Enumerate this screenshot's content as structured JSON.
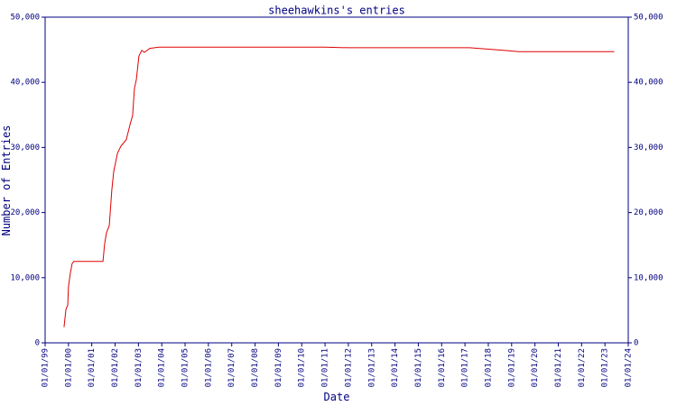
{
  "chart_data": {
    "type": "line",
    "title": "sheehawkins's entries",
    "x_label": "Date",
    "y_label": "Number of Entries",
    "x": [
      1999.81,
      1999.89,
      1999.97,
      2000.0,
      2000.08,
      2000.16,
      2000.23,
      2001.48,
      2001.55,
      2001.63,
      2001.75,
      2001.86,
      2001.94,
      2002.1,
      2002.25,
      2002.48,
      2002.64,
      2002.75,
      2002.83,
      2002.91,
      2003.02,
      2003.14,
      2003.26,
      2003.49,
      2003.88,
      2011.0,
      2012.0,
      2017.2,
      2018.7,
      2019.3,
      2023.4
    ],
    "series": [
      {
        "color": "#e00000",
        "values": [
          2400,
          5100,
          5800,
          8600,
          10700,
          12200,
          12500,
          12500,
          15200,
          16900,
          18000,
          23500,
          26300,
          29100,
          30200,
          31200,
          33500,
          34900,
          39100,
          40400,
          44000,
          44900,
          44600,
          45200,
          45400,
          45400,
          45300,
          45300,
          44900,
          44700,
          44700
        ]
      }
    ],
    "xlim": [
      1999,
      2024
    ],
    "xticks": [
      {
        "value": 1999,
        "label": "01/01/99"
      },
      {
        "value": 2000,
        "label": "01/01/00"
      },
      {
        "value": 2001,
        "label": "01/01/01"
      },
      {
        "value": 2002,
        "label": "01/01/02"
      },
      {
        "value": 2003,
        "label": "01/01/03"
      },
      {
        "value": 2004,
        "label": "01/01/04"
      },
      {
        "value": 2005,
        "label": "01/01/05"
      },
      {
        "value": 2006,
        "label": "01/01/06"
      },
      {
        "value": 2007,
        "label": "01/01/07"
      },
      {
        "value": 2008,
        "label": "01/01/08"
      },
      {
        "value": 2009,
        "label": "01/01/09"
      },
      {
        "value": 2010,
        "label": "01/01/10"
      },
      {
        "value": 2011,
        "label": "01/01/11"
      },
      {
        "value": 2012,
        "label": "01/01/12"
      },
      {
        "value": 2013,
        "label": "01/01/13"
      },
      {
        "value": 2014,
        "label": "01/01/14"
      },
      {
        "value": 2015,
        "label": "01/01/15"
      },
      {
        "value": 2016,
        "label": "01/01/16"
      },
      {
        "value": 2017,
        "label": "01/01/17"
      },
      {
        "value": 2018,
        "label": "01/01/18"
      },
      {
        "value": 2019,
        "label": "01/01/19"
      },
      {
        "value": 2020,
        "label": "01/01/20"
      },
      {
        "value": 2021,
        "label": "01/01/21"
      },
      {
        "value": 2022,
        "label": "01/01/22"
      },
      {
        "value": 2023,
        "label": "01/01/23"
      },
      {
        "value": 2024,
        "label": "01/01/24"
      }
    ],
    "ylim": [
      0,
      50000
    ],
    "yticks": [
      0,
      {
        "value": 10000,
        "label": "10,000"
      },
      {
        "value": 20000,
        "label": "20,000"
      },
      {
        "value": 30000,
        "label": "30,000"
      },
      {
        "value": 40000,
        "label": "40,000"
      },
      {
        "value": 50000,
        "label": "50,000"
      }
    ],
    "grid": false,
    "axis_color": "#000080"
  }
}
